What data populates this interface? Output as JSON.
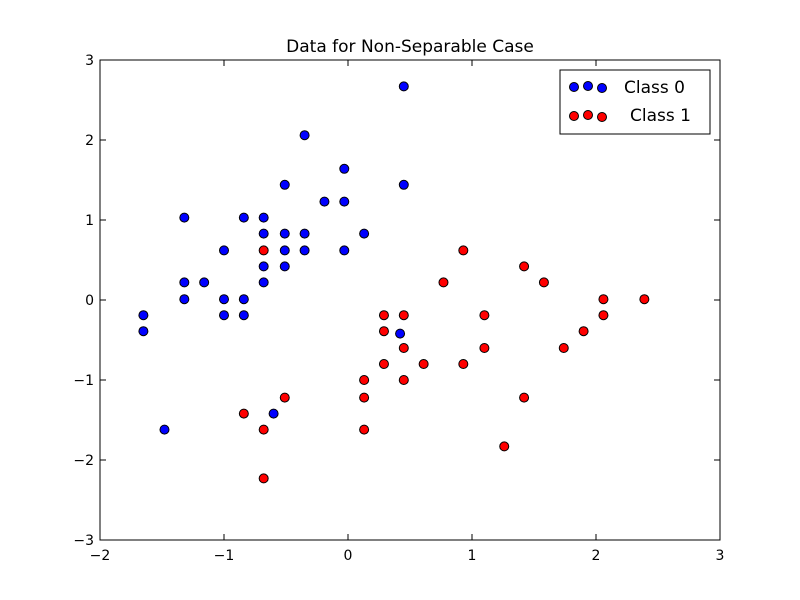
{
  "chart_data": {
    "type": "scatter",
    "title": "Data for Non-Separable Case",
    "xlabel": "",
    "ylabel": "",
    "xlim": [
      -2,
      3
    ],
    "ylim": [
      -3,
      3
    ],
    "xticks": [
      -2,
      -1,
      0,
      1,
      2,
      3
    ],
    "yticks": [
      -3,
      -2,
      -1,
      0,
      1,
      2,
      3
    ],
    "xtick_labels": [
      "−2",
      "−1",
      "0",
      "1",
      "2",
      "3"
    ],
    "ytick_labels": [
      "−3",
      "−2",
      "−1",
      "0",
      "1",
      "2",
      "3"
    ],
    "grid": false,
    "legend": {
      "placement": "top-right",
      "entries": [
        "Class 0",
        "Class 1"
      ]
    },
    "series": [
      {
        "name": "Class 0",
        "color": "#0000ff",
        "points": [
          [
            0.45,
            2.67
          ],
          [
            -0.35,
            2.06
          ],
          [
            -0.03,
            1.64
          ],
          [
            -0.51,
            1.44
          ],
          [
            0.45,
            1.44
          ],
          [
            -0.19,
            1.23
          ],
          [
            -0.03,
            1.23
          ],
          [
            -1.32,
            1.03
          ],
          [
            -0.84,
            1.03
          ],
          [
            -0.68,
            1.03
          ],
          [
            -0.68,
            0.83
          ],
          [
            -0.51,
            0.83
          ],
          [
            -0.35,
            0.83
          ],
          [
            0.13,
            0.83
          ],
          [
            -1.0,
            0.62
          ],
          [
            -0.51,
            0.62
          ],
          [
            -0.35,
            0.62
          ],
          [
            -0.03,
            0.62
          ],
          [
            -0.68,
            0.42
          ],
          [
            -0.51,
            0.42
          ],
          [
            -1.32,
            0.22
          ],
          [
            -1.16,
            0.22
          ],
          [
            -0.68,
            0.22
          ],
          [
            -1.32,
            0.01
          ],
          [
            -1.0,
            0.01
          ],
          [
            -0.84,
            0.01
          ],
          [
            -1.65,
            -0.19
          ],
          [
            -1.0,
            -0.19
          ],
          [
            -0.84,
            -0.19
          ],
          [
            -1.65,
            -0.39
          ],
          [
            0.42,
            -0.42
          ],
          [
            -0.6,
            -1.42
          ],
          [
            -1.48,
            -1.62
          ]
        ]
      },
      {
        "name": "Class 1",
        "color": "#ff0000",
        "points": [
          [
            -0.68,
            0.62
          ],
          [
            0.93,
            0.62
          ],
          [
            1.42,
            0.42
          ],
          [
            0.77,
            0.22
          ],
          [
            1.58,
            0.22
          ],
          [
            2.06,
            0.01
          ],
          [
            2.39,
            0.01
          ],
          [
            0.29,
            -0.19
          ],
          [
            0.45,
            -0.19
          ],
          [
            1.1,
            -0.19
          ],
          [
            2.06,
            -0.19
          ],
          [
            0.29,
            -0.39
          ],
          [
            1.9,
            -0.39
          ],
          [
            0.45,
            -0.6
          ],
          [
            1.1,
            -0.6
          ],
          [
            1.74,
            -0.6
          ],
          [
            0.29,
            -0.8
          ],
          [
            0.61,
            -0.8
          ],
          [
            0.93,
            -0.8
          ],
          [
            0.13,
            -1.0
          ],
          [
            0.45,
            -1.0
          ],
          [
            -0.51,
            -1.22
          ],
          [
            0.13,
            -1.22
          ],
          [
            1.42,
            -1.22
          ],
          [
            -0.84,
            -1.42
          ],
          [
            -0.68,
            -1.62
          ],
          [
            0.13,
            -1.62
          ],
          [
            1.26,
            -1.83
          ],
          [
            -0.68,
            -2.23
          ]
        ]
      }
    ]
  }
}
